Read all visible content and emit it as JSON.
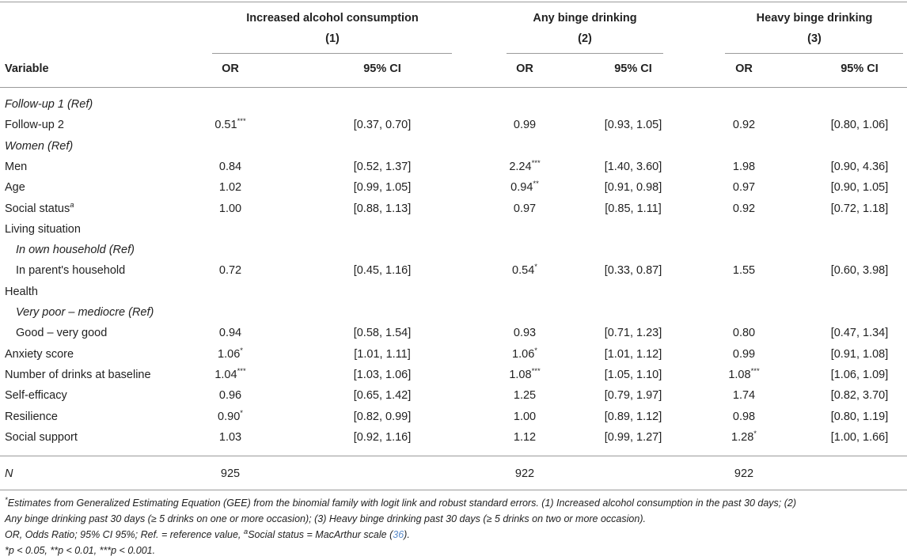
{
  "header": {
    "groups": [
      {
        "title": "Increased alcohol consumption",
        "num": "(1)"
      },
      {
        "title": "Any binge drinking",
        "num": "(2)"
      },
      {
        "title": "Heavy binge drinking",
        "num": "(3)"
      }
    ],
    "variable_label": "Variable",
    "or_label": "OR",
    "ci_label": "95% CI"
  },
  "rows": [
    {
      "label": "Follow-up 1 (Ref)"
    },
    {
      "label": "Follow-up 2",
      "or1": "0.51",
      "sig1": "***",
      "ci1": "[0.37, 0.70]",
      "or2": "0.99",
      "ci2": "[0.93, 1.05]",
      "or3": "0.92",
      "ci3": "[0.80, 1.06]"
    },
    {
      "label": "Women (Ref)"
    },
    {
      "label": "Men",
      "or1": "0.84",
      "ci1": "[0.52, 1.37]",
      "or2": "2.24",
      "sig2": "***",
      "ci2": "[1.40, 3.60]",
      "or3": "1.98",
      "ci3": "[0.90, 4.36]"
    },
    {
      "label": "Age",
      "or1": "1.02",
      "ci1": "[0.99, 1.05]",
      "or2": "0.94",
      "sig2": "**",
      "ci2": "[0.91, 0.98]",
      "or3": "0.97",
      "ci3": "[0.90, 1.05]"
    },
    {
      "label": "Social status",
      "sup": "a",
      "or1": "1.00",
      "ci1": "[0.88, 1.13]",
      "or2": "0.97",
      "ci2": "[0.85, 1.11]",
      "or3": "0.92",
      "ci3": "[0.72, 1.18]"
    },
    {
      "label": "Living situation"
    },
    {
      "label": "In own household (Ref)"
    },
    {
      "label": "In parent's household",
      "or1": "0.72",
      "ci1": "[0.45, 1.16]",
      "or2": "0.54",
      "sig2": "*",
      "ci2": "[0.33, 0.87]",
      "or3": "1.55",
      "ci3": "[0.60, 3.98]"
    },
    {
      "label": "Health"
    },
    {
      "label": "Very poor – mediocre (Ref)"
    },
    {
      "label": "Good – very good",
      "or1": "0.94",
      "ci1": "[0.58, 1.54]",
      "or2": "0.93",
      "ci2": "[0.71, 1.23]",
      "or3": "0.80",
      "ci3": "[0.47, 1.34]"
    },
    {
      "label": "Anxiety score",
      "or1": "1.06",
      "sig1": "*",
      "ci1": "[1.01, 1.11]",
      "or2": "1.06",
      "sig2": "*",
      "ci2": "[1.01, 1.12]",
      "or3": "0.99",
      "ci3": "[0.91, 1.08]"
    },
    {
      "label": "Number of drinks at baseline",
      "or1": "1.04",
      "sig1": "***",
      "ci1": "[1.03, 1.06]",
      "or2": "1.08",
      "sig2": "***",
      "ci2": "[1.05, 1.10]",
      "or3": "1.08",
      "sig3": "***",
      "ci3": "[1.06, 1.09]"
    },
    {
      "label": "Self-efficacy",
      "or1": "0.96",
      "ci1": "[0.65, 1.42]",
      "or2": "1.25",
      "ci2": "[0.79, 1.97]",
      "or3": "1.74",
      "ci3": "[0.82, 3.70]"
    },
    {
      "label": "Resilience",
      "or1": "0.90",
      "sig1": "*",
      "ci1": "[0.82, 0.99]",
      "or2": "1.00",
      "ci2": "[0.89, 1.12]",
      "or3": "0.98",
      "ci3": "[0.80, 1.19]"
    },
    {
      "label": "Social support",
      "or1": "1.03",
      "ci1": "[0.92, 1.16]",
      "or2": "1.12",
      "ci2": "[0.99, 1.27]",
      "or3": "1.28",
      "sig3": "*",
      "ci3": "[1.00, 1.66]"
    }
  ],
  "n_row": {
    "label": "N",
    "n1": "925",
    "n2": "922",
    "n3": "922"
  },
  "footnotes": {
    "line1_mark": "*",
    "line1": "Estimates from Generalized Estimating Equation (GEE) from the binomial family with logit link and robust standard errors. (1) Increased alcohol consumption in the past 30 days; (2)",
    "line2": "Any binge drinking past 30 days (≥ 5 drinks on one or more occasion); (3) Heavy binge drinking past 30 days (≥ 5 drinks on two or more occasion).",
    "line3_a": "OR, Odds Ratio; 95% CI 95%; Ref. = reference value, ",
    "line3_sup": "a",
    "line3_b": "Social status = MacArthur scale (",
    "line3_ref": "36",
    "line3_c": ").",
    "line4": "*p < 0.05, **p < 0.01, ***p < 0.001."
  },
  "colors": {
    "rule": "#9a9a9a",
    "text": "#222222",
    "ref_link": "#5b8bc9"
  }
}
